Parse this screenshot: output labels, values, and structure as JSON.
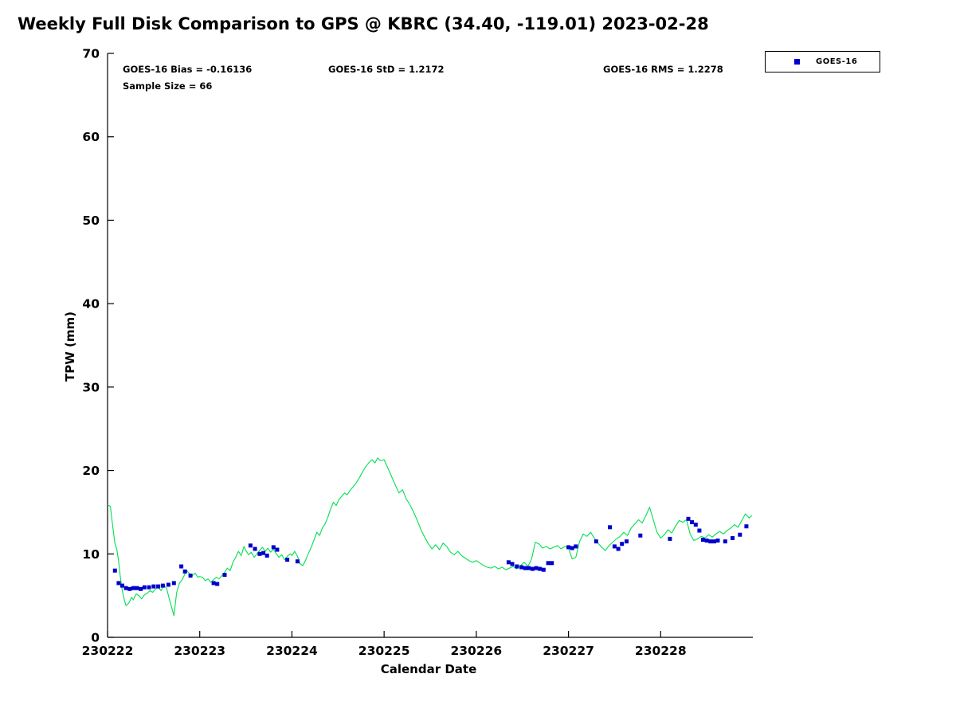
{
  "chart_data": {
    "type": "line+scatter",
    "title": "Weekly Full Disk Comparison to GPS @ KBRC (34.40, -119.01) 2023-02-28",
    "xlabel": "Calendar Date",
    "ylabel": "TPW (mm)",
    "ylim": [
      0,
      70
    ],
    "y_ticks": [
      0,
      10,
      20,
      30,
      40,
      50,
      60,
      70
    ],
    "xlim_days": [
      0,
      7
    ],
    "x_ticks": [
      {
        "label": "230222",
        "day": 0
      },
      {
        "label": "230223",
        "day": 1
      },
      {
        "label": "230224",
        "day": 2
      },
      {
        "label": "230225",
        "day": 3
      },
      {
        "label": "230226",
        "day": 4
      },
      {
        "label": "230227",
        "day": 5
      },
      {
        "label": "230228",
        "day": 6
      }
    ],
    "annotations": {
      "bias": "GOES-16 Bias = -0.16136",
      "std": "GOES-16 StD = 1.2172",
      "rms": "GOES-16 RMS = 1.2278",
      "sample_size": "Sample Size = 66"
    },
    "legend": [
      {
        "label": "GOES-16",
        "marker": "square",
        "color": "#0000cd"
      }
    ],
    "series": [
      {
        "name": "GPS",
        "type": "line",
        "color": "#00e050",
        "x": [
          0.0,
          0.03,
          0.06,
          0.08,
          0.1,
          0.12,
          0.14,
          0.16,
          0.18,
          0.2,
          0.23,
          0.26,
          0.28,
          0.31,
          0.34,
          0.37,
          0.4,
          0.43,
          0.46,
          0.49,
          0.52,
          0.55,
          0.58,
          0.61,
          0.64,
          0.67,
          0.7,
          0.72,
          0.75,
          0.78,
          0.81,
          0.84,
          0.86,
          0.89,
          0.92,
          0.95,
          0.98,
          1.0,
          1.03,
          1.06,
          1.09,
          1.12,
          1.15,
          1.18,
          1.21,
          1.24,
          1.27,
          1.3,
          1.33,
          1.36,
          1.39,
          1.42,
          1.45,
          1.48,
          1.5,
          1.53,
          1.56,
          1.59,
          1.62,
          1.65,
          1.68,
          1.71,
          1.74,
          1.77,
          1.8,
          1.83,
          1.86,
          1.89,
          1.92,
          1.95,
          1.98,
          2.0,
          2.03,
          2.06,
          2.09,
          2.12,
          2.15,
          2.18,
          2.21,
          2.24,
          2.27,
          2.3,
          2.33,
          2.36,
          2.39,
          2.42,
          2.45,
          2.48,
          2.51,
          2.54,
          2.57,
          2.6,
          2.63,
          2.66,
          2.69,
          2.72,
          2.75,
          2.78,
          2.81,
          2.84,
          2.87,
          2.9,
          2.93,
          2.96,
          3.0,
          3.04,
          3.08,
          3.12,
          3.16,
          3.2,
          3.24,
          3.28,
          3.32,
          3.36,
          3.4,
          3.44,
          3.48,
          3.52,
          3.56,
          3.6,
          3.64,
          3.68,
          3.72,
          3.76,
          3.8,
          3.84,
          3.88,
          3.92,
          3.96,
          4.0,
          4.04,
          4.08,
          4.12,
          4.16,
          4.2,
          4.24,
          4.28,
          4.32,
          4.36,
          4.4,
          4.44,
          4.48,
          4.52,
          4.56,
          4.6,
          4.64,
          4.68,
          4.72,
          4.76,
          4.8,
          4.84,
          4.88,
          4.92,
          4.96,
          5.0,
          5.04,
          5.08,
          5.12,
          5.16,
          5.2,
          5.24,
          5.28,
          5.32,
          5.36,
          5.4,
          5.44,
          5.48,
          5.52,
          5.56,
          5.6,
          5.64,
          5.68,
          5.72,
          5.76,
          5.8,
          5.84,
          5.88,
          5.92,
          5.96,
          6.0,
          6.04,
          6.08,
          6.12,
          6.16,
          6.2,
          6.24,
          6.28,
          6.32,
          6.36,
          6.4,
          6.44,
          6.48,
          6.52,
          6.56,
          6.6,
          6.64,
          6.68,
          6.72,
          6.76,
          6.8,
          6.84,
          6.88,
          6.92,
          6.96,
          6.99
        ],
        "y": [
          15.9,
          15.7,
          13.0,
          11.2,
          10.6,
          9.1,
          7.1,
          5.6,
          4.6,
          3.8,
          4.1,
          4.8,
          4.5,
          5.2,
          5.0,
          4.6,
          5.1,
          5.3,
          5.6,
          5.4,
          5.8,
          6.0,
          5.6,
          6.2,
          5.9,
          4.6,
          3.4,
          2.6,
          5.4,
          6.5,
          6.9,
          7.6,
          8.0,
          7.6,
          7.4,
          7.7,
          7.2,
          7.3,
          7.2,
          6.8,
          7.0,
          6.6,
          6.9,
          7.2,
          7.0,
          7.4,
          7.8,
          8.3,
          8.0,
          9.0,
          9.6,
          10.3,
          9.8,
          10.9,
          10.4,
          9.9,
          10.2,
          9.6,
          10.0,
          10.4,
          10.8,
          10.3,
          10.7,
          10.2,
          10.6,
          10.0,
          9.6,
          9.9,
          9.3,
          9.7,
          10.0,
          9.8,
          10.3,
          9.7,
          8.8,
          8.6,
          9.3,
          10.1,
          10.8,
          11.7,
          12.6,
          12.2,
          13.1,
          13.6,
          14.4,
          15.4,
          16.2,
          15.8,
          16.5,
          16.9,
          17.3,
          17.1,
          17.6,
          18.0,
          18.4,
          18.9,
          19.5,
          20.1,
          20.6,
          21.0,
          21.3,
          20.9,
          21.5,
          21.2,
          21.3,
          20.3,
          19.3,
          18.3,
          17.3,
          17.7,
          16.6,
          15.9,
          15.0,
          14.0,
          12.9,
          12.0,
          11.2,
          10.6,
          11.1,
          10.5,
          11.3,
          10.9,
          10.2,
          9.9,
          10.3,
          9.8,
          9.5,
          9.2,
          9.0,
          9.2,
          8.9,
          8.6,
          8.4,
          8.3,
          8.5,
          8.2,
          8.4,
          8.1,
          8.3,
          8.5,
          8.2,
          8.6,
          9.0,
          8.5,
          9.4,
          11.4,
          11.2,
          10.7,
          10.9,
          10.6,
          10.8,
          11.0,
          10.6,
          10.9,
          10.7,
          9.4,
          9.6,
          11.5,
          12.4,
          12.1,
          12.6,
          11.9,
          11.3,
          10.8,
          10.4,
          11.0,
          11.4,
          11.8,
          12.1,
          12.6,
          12.2,
          13.1,
          13.6,
          14.1,
          13.7,
          14.6,
          15.6,
          14.1,
          12.6,
          11.9,
          12.3,
          12.9,
          12.5,
          13.3,
          14.0,
          13.8,
          14.1,
          12.4,
          11.6,
          11.8,
          12.1,
          11.9,
          12.3,
          12.0,
          12.4,
          12.7,
          12.4,
          12.8,
          13.1,
          13.5,
          13.2,
          14.0,
          14.8,
          14.3,
          14.6
        ]
      },
      {
        "name": "GOES-16",
        "type": "scatter",
        "color": "#0000cd",
        "marker_size": 5,
        "x": [
          0.08,
          0.12,
          0.16,
          0.2,
          0.24,
          0.28,
          0.32,
          0.36,
          0.4,
          0.45,
          0.5,
          0.55,
          0.6,
          0.66,
          0.72,
          0.8,
          0.84,
          0.9,
          1.15,
          1.19,
          1.27,
          1.55,
          1.6,
          1.65,
          1.69,
          1.73,
          1.8,
          1.84,
          1.95,
          2.06,
          4.35,
          4.39,
          4.44,
          4.49,
          4.53,
          4.57,
          4.61,
          4.65,
          4.69,
          4.73,
          4.78,
          4.82,
          5.0,
          5.04,
          5.08,
          5.3,
          5.45,
          5.5,
          5.54,
          5.58,
          5.63,
          5.78,
          6.1,
          6.3,
          6.34,
          6.38,
          6.42,
          6.46,
          6.5,
          6.54,
          6.58,
          6.62,
          6.7,
          6.78,
          6.86,
          6.93
        ],
        "y": [
          8.0,
          6.5,
          6.2,
          5.9,
          5.8,
          5.9,
          5.9,
          5.8,
          6.0,
          6.0,
          6.1,
          6.1,
          6.2,
          6.3,
          6.5,
          8.5,
          7.9,
          7.4,
          6.5,
          6.4,
          7.5,
          11.0,
          10.6,
          10.0,
          10.1,
          9.8,
          10.8,
          10.5,
          9.3,
          9.1,
          9.0,
          8.8,
          8.5,
          8.4,
          8.3,
          8.3,
          8.2,
          8.3,
          8.2,
          8.1,
          8.9,
          8.9,
          10.8,
          10.7,
          10.9,
          11.5,
          13.2,
          10.9,
          10.6,
          11.2,
          11.5,
          12.2,
          11.8,
          14.2,
          13.8,
          13.5,
          12.8,
          11.7,
          11.6,
          11.5,
          11.5,
          11.6,
          11.5,
          11.9,
          12.3,
          13.3
        ]
      }
    ]
  }
}
